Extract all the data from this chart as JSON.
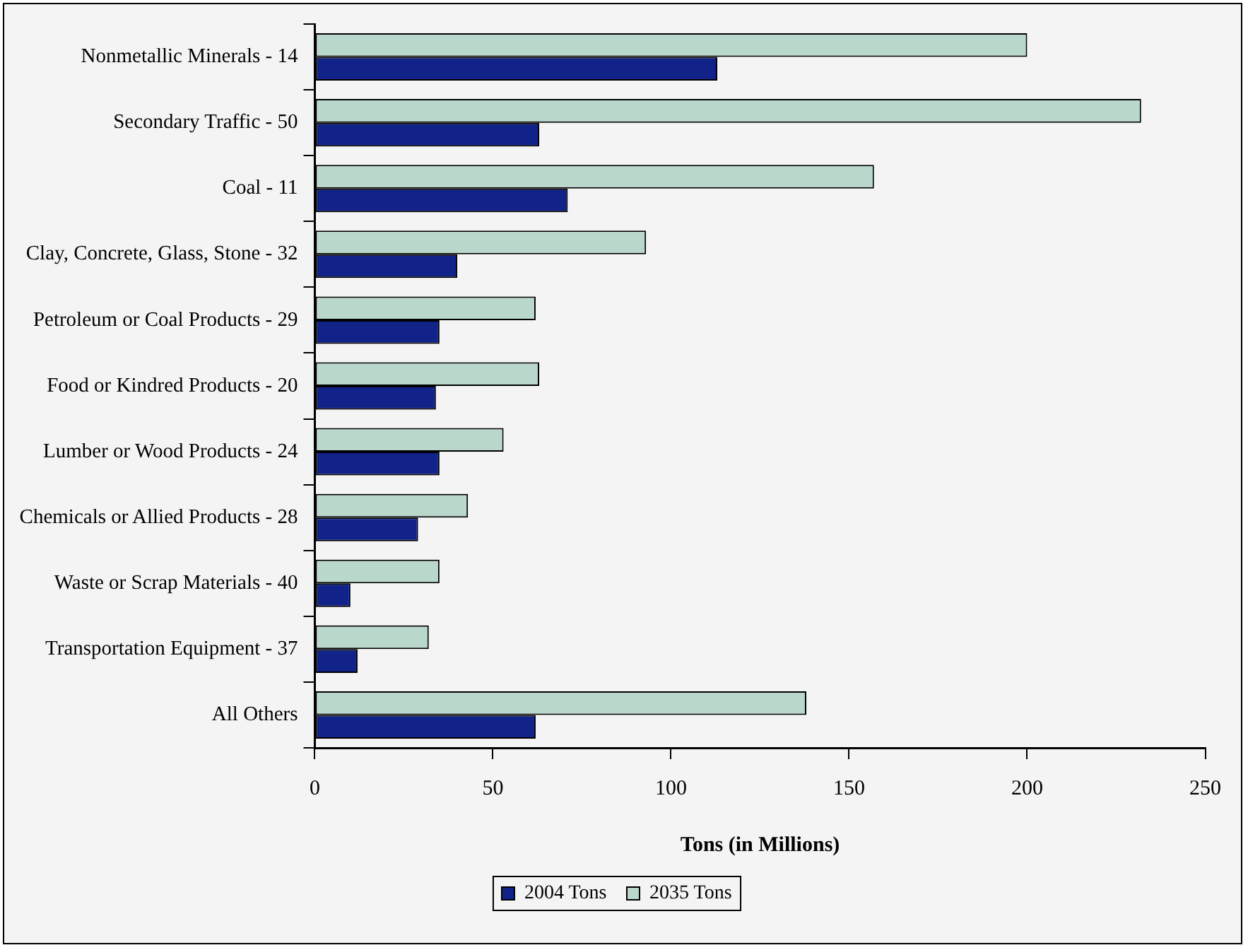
{
  "chart_data": {
    "type": "bar",
    "orientation": "horizontal",
    "xlabel": "Tons (in Millions)",
    "categories": [
      "Nonmetallic Minerals - 14",
      "Secondary Traffic - 50",
      "Coal - 11",
      "Clay, Concrete, Glass, Stone - 32",
      "Petroleum or Coal Products - 29",
      "Food or Kindred Products - 20",
      "Lumber or Wood Products - 24",
      "Chemicals or Allied Products - 28",
      "Waste or Scrap Materials - 40",
      "Transportation Equipment - 37",
      "All Others"
    ],
    "series": [
      {
        "name": "2004 Tons",
        "color": "#112288",
        "values": [
          113,
          63,
          71,
          40,
          35,
          34,
          35,
          29,
          10,
          12,
          62
        ]
      },
      {
        "name": "2035 Tons",
        "color": "#b9d7cb",
        "values": [
          200,
          232,
          157,
          93,
          62,
          63,
          53,
          43,
          35,
          32,
          138
        ]
      }
    ],
    "xlim": [
      0,
      250
    ],
    "xticks": [
      0,
      50,
      100,
      150,
      200,
      250
    ],
    "grid": false,
    "legend": "bottom"
  }
}
